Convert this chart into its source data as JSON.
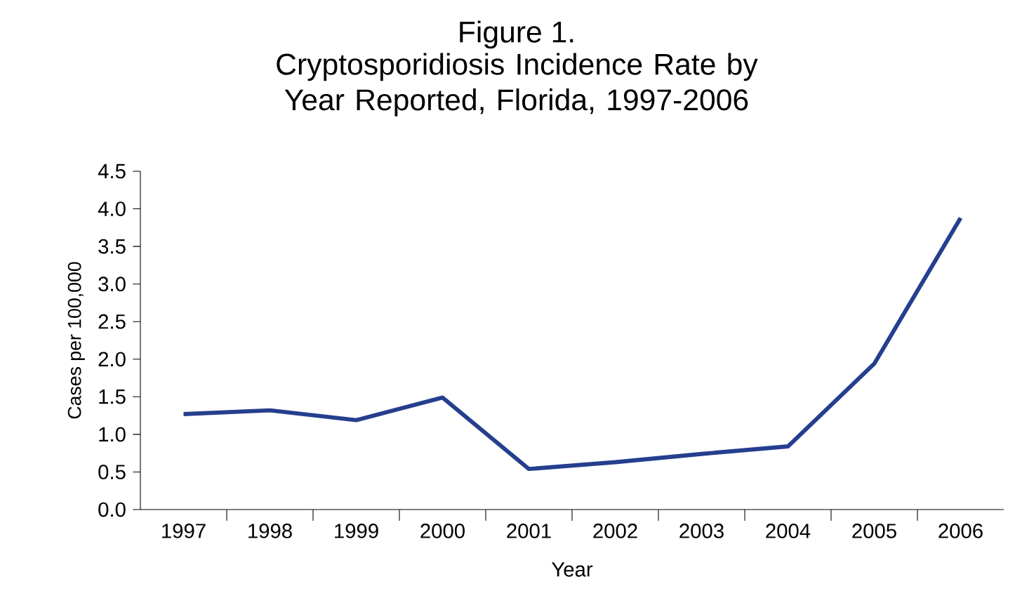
{
  "chart_data": {
    "type": "line",
    "title": "Figure 1.",
    "subtitle": "Cryptosporidiosis Incidence Rate by Year Reported, Florida, 1997-2006",
    "xlabel": "Year",
    "ylabel": "Cases per 100,000",
    "categories": [
      "1997",
      "1998",
      "1999",
      "2000",
      "2001",
      "2002",
      "2003",
      "2004",
      "2005",
      "2006"
    ],
    "series": [
      {
        "color": "#253f8e",
        "values": [
          1.27,
          1.32,
          1.19,
          1.49,
          0.54,
          0.63,
          0.74,
          0.84,
          1.94,
          3.88
        ]
      }
    ],
    "ylim": [
      0,
      4.5
    ],
    "yticks": [
      {
        "value": 0,
        "label": "0.0"
      },
      0.5,
      {
        "value": 1,
        "label": "1.0"
      },
      1.5,
      {
        "value": 2,
        "label": "2.0"
      },
      2.5,
      {
        "value": 3,
        "label": "3.0"
      },
      3.5,
      {
        "value": 4,
        "label": "4.0"
      },
      4.5
    ],
    "grid": false,
    "legend": false,
    "marker": "none",
    "line_style": "solid"
  }
}
